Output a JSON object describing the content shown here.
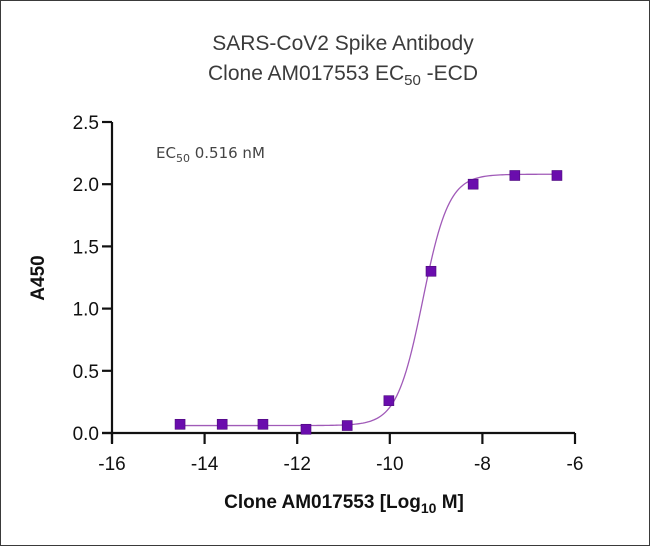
{
  "chart_data": {
    "type": "scatter",
    "title_line1": "SARS-CoV2 Spike Antibody",
    "title_line2_main": "Clone AM017553 EC",
    "title_line2_sub": "50",
    "title_line2_suffix": " -ECD",
    "xlabel_main": "Clone AM017553 [Log",
    "xlabel_sub": "10",
    "xlabel_suffix": " M]",
    "ylabel": "A450",
    "xlim": [
      -16,
      -6
    ],
    "ylim": [
      0,
      2.5
    ],
    "x_ticks": [
      -16,
      -14,
      -12,
      -10,
      -8,
      -6
    ],
    "x_tick_labels": [
      "-16",
      "-14",
      "-12",
      "-10",
      "-8",
      "-6"
    ],
    "y_ticks": [
      0,
      0.5,
      1.0,
      1.5,
      2.0,
      2.5
    ],
    "y_tick_labels": [
      "0.0",
      "0.5",
      "1.0",
      "1.5",
      "2.0",
      "2.5"
    ],
    "grid": false,
    "legend": null,
    "annotation": {
      "main": "EC",
      "sub": "50",
      "value": " 0.516 nM"
    },
    "series": [
      {
        "name": "Clone AM017553",
        "marker": "square",
        "color": "#6a0dad",
        "line_color": "#a05ab8",
        "fit": "4PL sigmoid",
        "x": [
          -14.53,
          -13.62,
          -12.74,
          -11.81,
          -10.92,
          -10.02,
          -9.11,
          -8.2,
          -7.3,
          -6.39
        ],
        "y": [
          0.07,
          0.07,
          0.07,
          0.03,
          0.06,
          0.26,
          1.3,
          2.0,
          2.07,
          2.07
        ]
      }
    ],
    "fit_params": {
      "bottom": 0.06,
      "top": 2.08,
      "log_ec50": -9.287,
      "hill": 1.55
    }
  }
}
